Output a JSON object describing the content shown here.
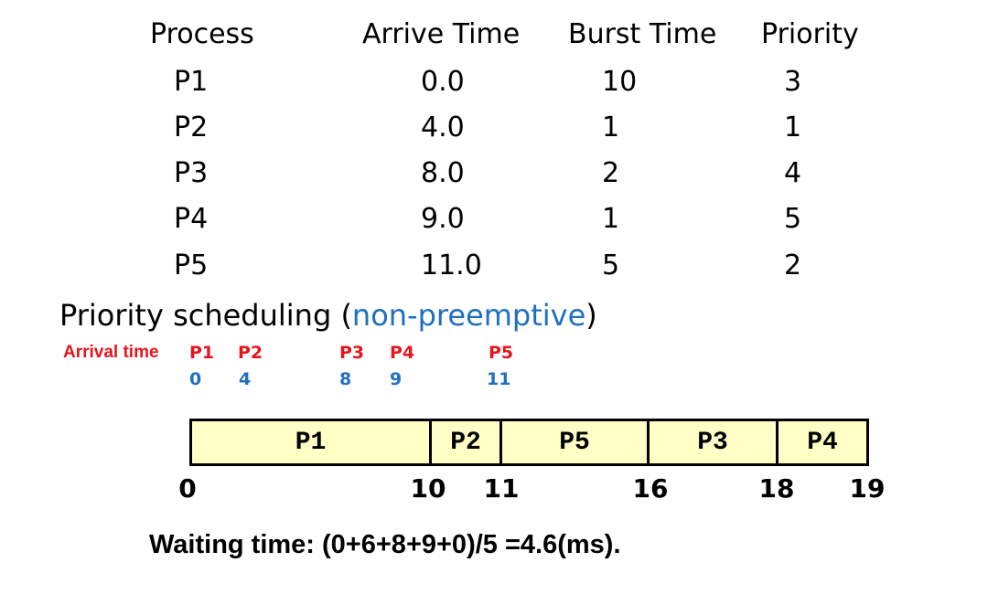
{
  "table": {
    "headers": [
      "Process",
      "Arrive Time",
      "Burst Time",
      "Priority"
    ],
    "rows": [
      [
        "P1",
        "0.0",
        "10",
        "3"
      ],
      [
        "P2",
        "4.0",
        "1",
        "1"
      ],
      [
        "P3",
        "8.0",
        "2",
        "4"
      ],
      [
        "P4",
        "9.0",
        "1",
        "5"
      ],
      [
        "P5",
        "11.0",
        "5",
        "2"
      ]
    ]
  },
  "title": {
    "main": "Priority scheduling (",
    "accent": "non-preemptive",
    "close": ")"
  },
  "arrivals": {
    "label": "Arrival time",
    "processes": [
      "P1",
      "P2",
      "P3",
      "P4",
      "P5"
    ],
    "times": [
      "0",
      "4",
      "8",
      "9",
      "11"
    ]
  },
  "gantt": {
    "segments": [
      {
        "label": "P1",
        "start": 0,
        "end": 10
      },
      {
        "label": "P2",
        "start": 10,
        "end": 11
      },
      {
        "label": "P5",
        "start": 11,
        "end": 16
      },
      {
        "label": "P3",
        "start": 16,
        "end": 18
      },
      {
        "label": "P4",
        "start": 18,
        "end": 19
      }
    ],
    "ticks": [
      "0",
      "10",
      "11",
      "16",
      "18",
      "19"
    ]
  },
  "waiting_time": "Waiting time: (0+6+8+9+0)/5 =4.6(ms).",
  "colors": {
    "accent_blue": "#1f6fbf",
    "arrival_red": "#e8141c",
    "gantt_fill": "#ffffc6"
  }
}
